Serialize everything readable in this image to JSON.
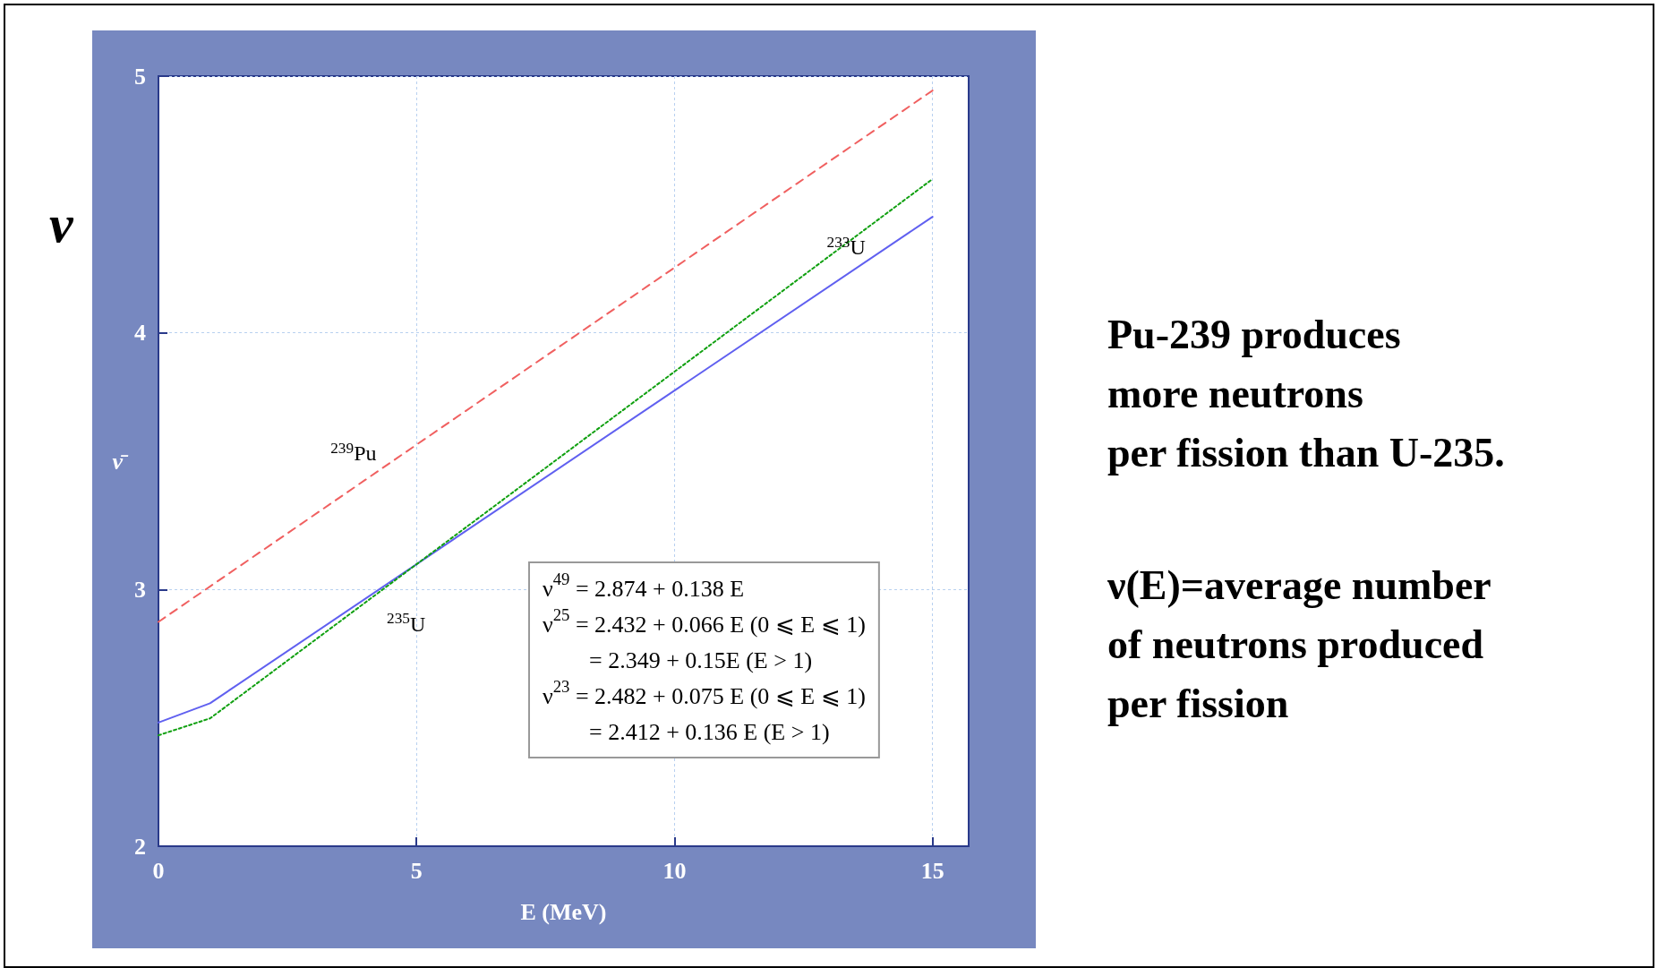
{
  "chart_data": {
    "type": "line",
    "xlabel": "E (MeV)",
    "ylabel": "ν̄",
    "xlim": [
      0,
      15.7
    ],
    "ylim": [
      2,
      5
    ],
    "xticks": [
      0,
      5,
      10,
      15
    ],
    "yticks": [
      2,
      3,
      4,
      5
    ],
    "grid": true,
    "legend": false,
    "marker": "none",
    "series": [
      {
        "name": "$^{239}$Pu",
        "color": "#f06060",
        "line_style": "dashed",
        "x": [
          0,
          15
        ],
        "values": [
          2.874,
          4.944
        ]
      },
      {
        "name": "$^{233}$U",
        "color": "#6060f0",
        "line_style": "solid",
        "x": [
          0,
          1,
          15
        ],
        "values": [
          2.482,
          2.557,
          4.452
        ]
      },
      {
        "name": "$^{235}$U",
        "color": "#10a010",
        "line_style": "dotted",
        "x": [
          0,
          1,
          15
        ],
        "values": [
          2.432,
          2.498,
          4.599
        ]
      }
    ],
    "annotations": [
      "ν$^{49}$ = 2.874 + 0.138 E\nν$^{25}$ = 2.432 + 0.066 E (0 ⩽ E ⩽ 1)\n        = 2.349 + 0.15E (E > 1)\nν$^{23}$ = 2.482 + 0.075 E (0 ⩽ E ⩽ 1)\n        = 2.412 + 0.136 E (E > 1)",
      "Pu-239 produces\nmore neutrons\nper fission than U-235.",
      "ν(E)=average number\nof neutrons produced\nper fission",
      "ν"
    ]
  }
}
